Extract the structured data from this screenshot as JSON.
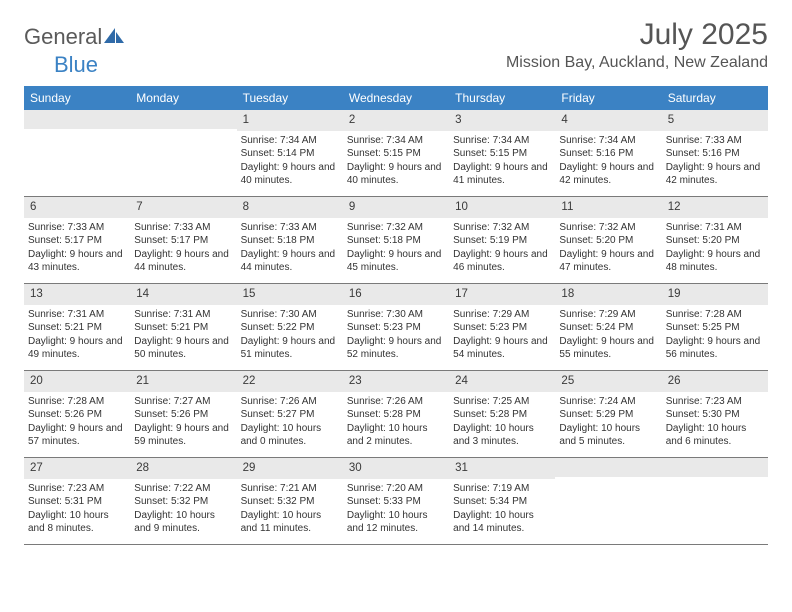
{
  "logo": {
    "text1": "General",
    "text2": "Blue"
  },
  "title": {
    "month": "July 2025",
    "location": "Mission Bay, Auckland, New Zealand"
  },
  "colors": {
    "accent": "#3b82c4",
    "text": "#333333",
    "header_text": "#ffffff",
    "daybar": "#e9e9e9",
    "row_border": "#7a7a7a"
  },
  "day_labels": [
    "Sunday",
    "Monday",
    "Tuesday",
    "Wednesday",
    "Thursday",
    "Friday",
    "Saturday"
  ],
  "weeks": [
    [
      {
        "num": "",
        "sunrise": "",
        "sunset": "",
        "daylight": ""
      },
      {
        "num": "",
        "sunrise": "",
        "sunset": "",
        "daylight": ""
      },
      {
        "num": "1",
        "sunrise": "Sunrise: 7:34 AM",
        "sunset": "Sunset: 5:14 PM",
        "daylight": "Daylight: 9 hours and 40 minutes."
      },
      {
        "num": "2",
        "sunrise": "Sunrise: 7:34 AM",
        "sunset": "Sunset: 5:15 PM",
        "daylight": "Daylight: 9 hours and 40 minutes."
      },
      {
        "num": "3",
        "sunrise": "Sunrise: 7:34 AM",
        "sunset": "Sunset: 5:15 PM",
        "daylight": "Daylight: 9 hours and 41 minutes."
      },
      {
        "num": "4",
        "sunrise": "Sunrise: 7:34 AM",
        "sunset": "Sunset: 5:16 PM",
        "daylight": "Daylight: 9 hours and 42 minutes."
      },
      {
        "num": "5",
        "sunrise": "Sunrise: 7:33 AM",
        "sunset": "Sunset: 5:16 PM",
        "daylight": "Daylight: 9 hours and 42 minutes."
      }
    ],
    [
      {
        "num": "6",
        "sunrise": "Sunrise: 7:33 AM",
        "sunset": "Sunset: 5:17 PM",
        "daylight": "Daylight: 9 hours and 43 minutes."
      },
      {
        "num": "7",
        "sunrise": "Sunrise: 7:33 AM",
        "sunset": "Sunset: 5:17 PM",
        "daylight": "Daylight: 9 hours and 44 minutes."
      },
      {
        "num": "8",
        "sunrise": "Sunrise: 7:33 AM",
        "sunset": "Sunset: 5:18 PM",
        "daylight": "Daylight: 9 hours and 44 minutes."
      },
      {
        "num": "9",
        "sunrise": "Sunrise: 7:32 AM",
        "sunset": "Sunset: 5:18 PM",
        "daylight": "Daylight: 9 hours and 45 minutes."
      },
      {
        "num": "10",
        "sunrise": "Sunrise: 7:32 AM",
        "sunset": "Sunset: 5:19 PM",
        "daylight": "Daylight: 9 hours and 46 minutes."
      },
      {
        "num": "11",
        "sunrise": "Sunrise: 7:32 AM",
        "sunset": "Sunset: 5:20 PM",
        "daylight": "Daylight: 9 hours and 47 minutes."
      },
      {
        "num": "12",
        "sunrise": "Sunrise: 7:31 AM",
        "sunset": "Sunset: 5:20 PM",
        "daylight": "Daylight: 9 hours and 48 minutes."
      }
    ],
    [
      {
        "num": "13",
        "sunrise": "Sunrise: 7:31 AM",
        "sunset": "Sunset: 5:21 PM",
        "daylight": "Daylight: 9 hours and 49 minutes."
      },
      {
        "num": "14",
        "sunrise": "Sunrise: 7:31 AM",
        "sunset": "Sunset: 5:21 PM",
        "daylight": "Daylight: 9 hours and 50 minutes."
      },
      {
        "num": "15",
        "sunrise": "Sunrise: 7:30 AM",
        "sunset": "Sunset: 5:22 PM",
        "daylight": "Daylight: 9 hours and 51 minutes."
      },
      {
        "num": "16",
        "sunrise": "Sunrise: 7:30 AM",
        "sunset": "Sunset: 5:23 PM",
        "daylight": "Daylight: 9 hours and 52 minutes."
      },
      {
        "num": "17",
        "sunrise": "Sunrise: 7:29 AM",
        "sunset": "Sunset: 5:23 PM",
        "daylight": "Daylight: 9 hours and 54 minutes."
      },
      {
        "num": "18",
        "sunrise": "Sunrise: 7:29 AM",
        "sunset": "Sunset: 5:24 PM",
        "daylight": "Daylight: 9 hours and 55 minutes."
      },
      {
        "num": "19",
        "sunrise": "Sunrise: 7:28 AM",
        "sunset": "Sunset: 5:25 PM",
        "daylight": "Daylight: 9 hours and 56 minutes."
      }
    ],
    [
      {
        "num": "20",
        "sunrise": "Sunrise: 7:28 AM",
        "sunset": "Sunset: 5:26 PM",
        "daylight": "Daylight: 9 hours and 57 minutes."
      },
      {
        "num": "21",
        "sunrise": "Sunrise: 7:27 AM",
        "sunset": "Sunset: 5:26 PM",
        "daylight": "Daylight: 9 hours and 59 minutes."
      },
      {
        "num": "22",
        "sunrise": "Sunrise: 7:26 AM",
        "sunset": "Sunset: 5:27 PM",
        "daylight": "Daylight: 10 hours and 0 minutes."
      },
      {
        "num": "23",
        "sunrise": "Sunrise: 7:26 AM",
        "sunset": "Sunset: 5:28 PM",
        "daylight": "Daylight: 10 hours and 2 minutes."
      },
      {
        "num": "24",
        "sunrise": "Sunrise: 7:25 AM",
        "sunset": "Sunset: 5:28 PM",
        "daylight": "Daylight: 10 hours and 3 minutes."
      },
      {
        "num": "25",
        "sunrise": "Sunrise: 7:24 AM",
        "sunset": "Sunset: 5:29 PM",
        "daylight": "Daylight: 10 hours and 5 minutes."
      },
      {
        "num": "26",
        "sunrise": "Sunrise: 7:23 AM",
        "sunset": "Sunset: 5:30 PM",
        "daylight": "Daylight: 10 hours and 6 minutes."
      }
    ],
    [
      {
        "num": "27",
        "sunrise": "Sunrise: 7:23 AM",
        "sunset": "Sunset: 5:31 PM",
        "daylight": "Daylight: 10 hours and 8 minutes."
      },
      {
        "num": "28",
        "sunrise": "Sunrise: 7:22 AM",
        "sunset": "Sunset: 5:32 PM",
        "daylight": "Daylight: 10 hours and 9 minutes."
      },
      {
        "num": "29",
        "sunrise": "Sunrise: 7:21 AM",
        "sunset": "Sunset: 5:32 PM",
        "daylight": "Daylight: 10 hours and 11 minutes."
      },
      {
        "num": "30",
        "sunrise": "Sunrise: 7:20 AM",
        "sunset": "Sunset: 5:33 PM",
        "daylight": "Daylight: 10 hours and 12 minutes."
      },
      {
        "num": "31",
        "sunrise": "Sunrise: 7:19 AM",
        "sunset": "Sunset: 5:34 PM",
        "daylight": "Daylight: 10 hours and 14 minutes."
      },
      {
        "num": "",
        "sunrise": "",
        "sunset": "",
        "daylight": ""
      },
      {
        "num": "",
        "sunrise": "",
        "sunset": "",
        "daylight": ""
      }
    ]
  ]
}
